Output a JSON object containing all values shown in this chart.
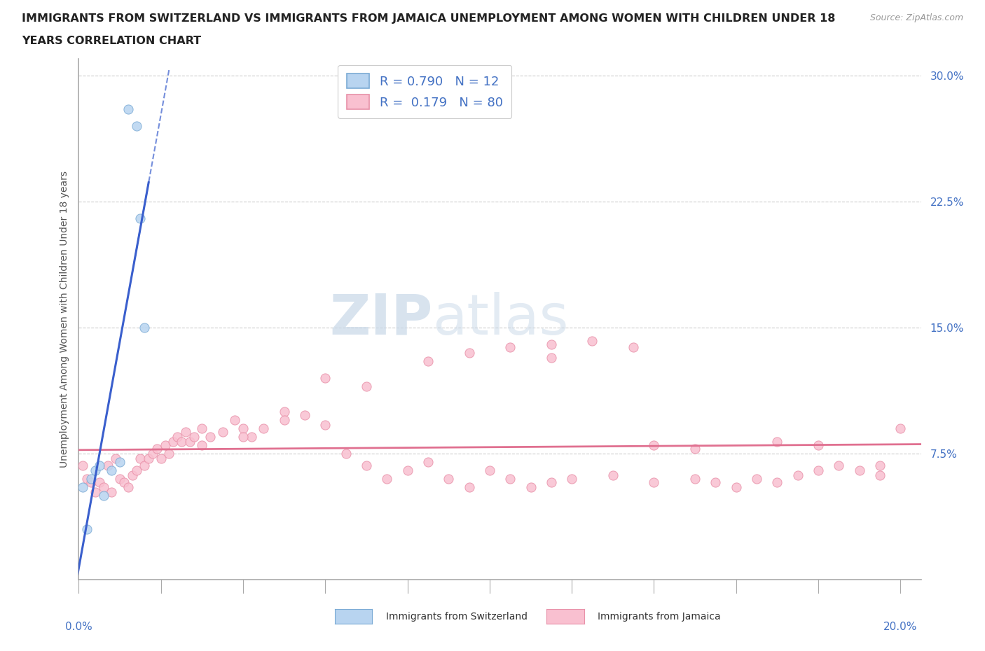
{
  "title_line1": "IMMIGRANTS FROM SWITZERLAND VS IMMIGRANTS FROM JAMAICA UNEMPLOYMENT AMONG WOMEN WITH CHILDREN UNDER 18",
  "title_line2": "YEARS CORRELATION CHART",
  "source": "Source: ZipAtlas.com",
  "ylabel": "Unemployment Among Women with Children Under 18 years",
  "R1": "0.790",
  "N1": "12",
  "R2": "0.179",
  "N2": "80",
  "legend1_label": "Immigrants from Switzerland",
  "legend2_label": "Immigrants from Jamaica",
  "color_swiss_fill": "#b8d4f0",
  "color_swiss_edge": "#7aaad4",
  "color_jamaica_fill": "#f9c0d0",
  "color_jamaica_edge": "#e890a8",
  "color_swiss_line": "#3a5fcd",
  "color_jamaica_line": "#e07090",
  "color_axis_blue": "#4472c4",
  "color_title": "#222222",
  "color_source": "#999999",
  "xlim": [
    0.0,
    0.205
  ],
  "ylim": [
    0.0,
    0.31
  ],
  "yticks": [
    0.075,
    0.15,
    0.225,
    0.3
  ],
  "ytick_labels": [
    "7.5%",
    "15.0%",
    "22.5%",
    "30.0%"
  ],
  "swiss_x": [
    0.001,
    0.002,
    0.003,
    0.004,
    0.005,
    0.006,
    0.008,
    0.01,
    0.012,
    0.014,
    0.015,
    0.016
  ],
  "swiss_y": [
    0.055,
    0.03,
    0.06,
    0.065,
    0.068,
    0.05,
    0.065,
    0.07,
    0.28,
    0.27,
    0.215,
    0.15
  ],
  "jamaica_x": [
    0.001,
    0.002,
    0.003,
    0.004,
    0.005,
    0.006,
    0.007,
    0.008,
    0.009,
    0.01,
    0.011,
    0.012,
    0.013,
    0.014,
    0.015,
    0.016,
    0.017,
    0.018,
    0.019,
    0.02,
    0.021,
    0.022,
    0.023,
    0.024,
    0.025,
    0.026,
    0.027,
    0.028,
    0.03,
    0.032,
    0.035,
    0.038,
    0.04,
    0.042,
    0.045,
    0.05,
    0.055,
    0.06,
    0.065,
    0.07,
    0.075,
    0.08,
    0.085,
    0.09,
    0.095,
    0.1,
    0.105,
    0.11,
    0.115,
    0.12,
    0.13,
    0.14,
    0.15,
    0.155,
    0.16,
    0.165,
    0.17,
    0.175,
    0.18,
    0.185,
    0.19,
    0.195,
    0.2,
    0.14,
    0.15,
    0.17,
    0.18,
    0.195,
    0.085,
    0.095,
    0.105,
    0.115,
    0.07,
    0.06,
    0.05,
    0.04,
    0.03,
    0.115,
    0.125,
    0.135
  ],
  "jamaica_y": [
    0.068,
    0.06,
    0.058,
    0.052,
    0.058,
    0.055,
    0.068,
    0.052,
    0.072,
    0.06,
    0.058,
    0.055,
    0.062,
    0.065,
    0.072,
    0.068,
    0.072,
    0.075,
    0.078,
    0.072,
    0.08,
    0.075,
    0.082,
    0.085,
    0.082,
    0.088,
    0.082,
    0.085,
    0.09,
    0.085,
    0.088,
    0.095,
    0.09,
    0.085,
    0.09,
    0.1,
    0.098,
    0.092,
    0.075,
    0.068,
    0.06,
    0.065,
    0.07,
    0.06,
    0.055,
    0.065,
    0.06,
    0.055,
    0.058,
    0.06,
    0.062,
    0.058,
    0.06,
    0.058,
    0.055,
    0.06,
    0.058,
    0.062,
    0.065,
    0.068,
    0.065,
    0.062,
    0.09,
    0.08,
    0.078,
    0.082,
    0.08,
    0.068,
    0.13,
    0.135,
    0.138,
    0.132,
    0.115,
    0.12,
    0.095,
    0.085,
    0.08,
    0.14,
    0.142,
    0.138
  ]
}
